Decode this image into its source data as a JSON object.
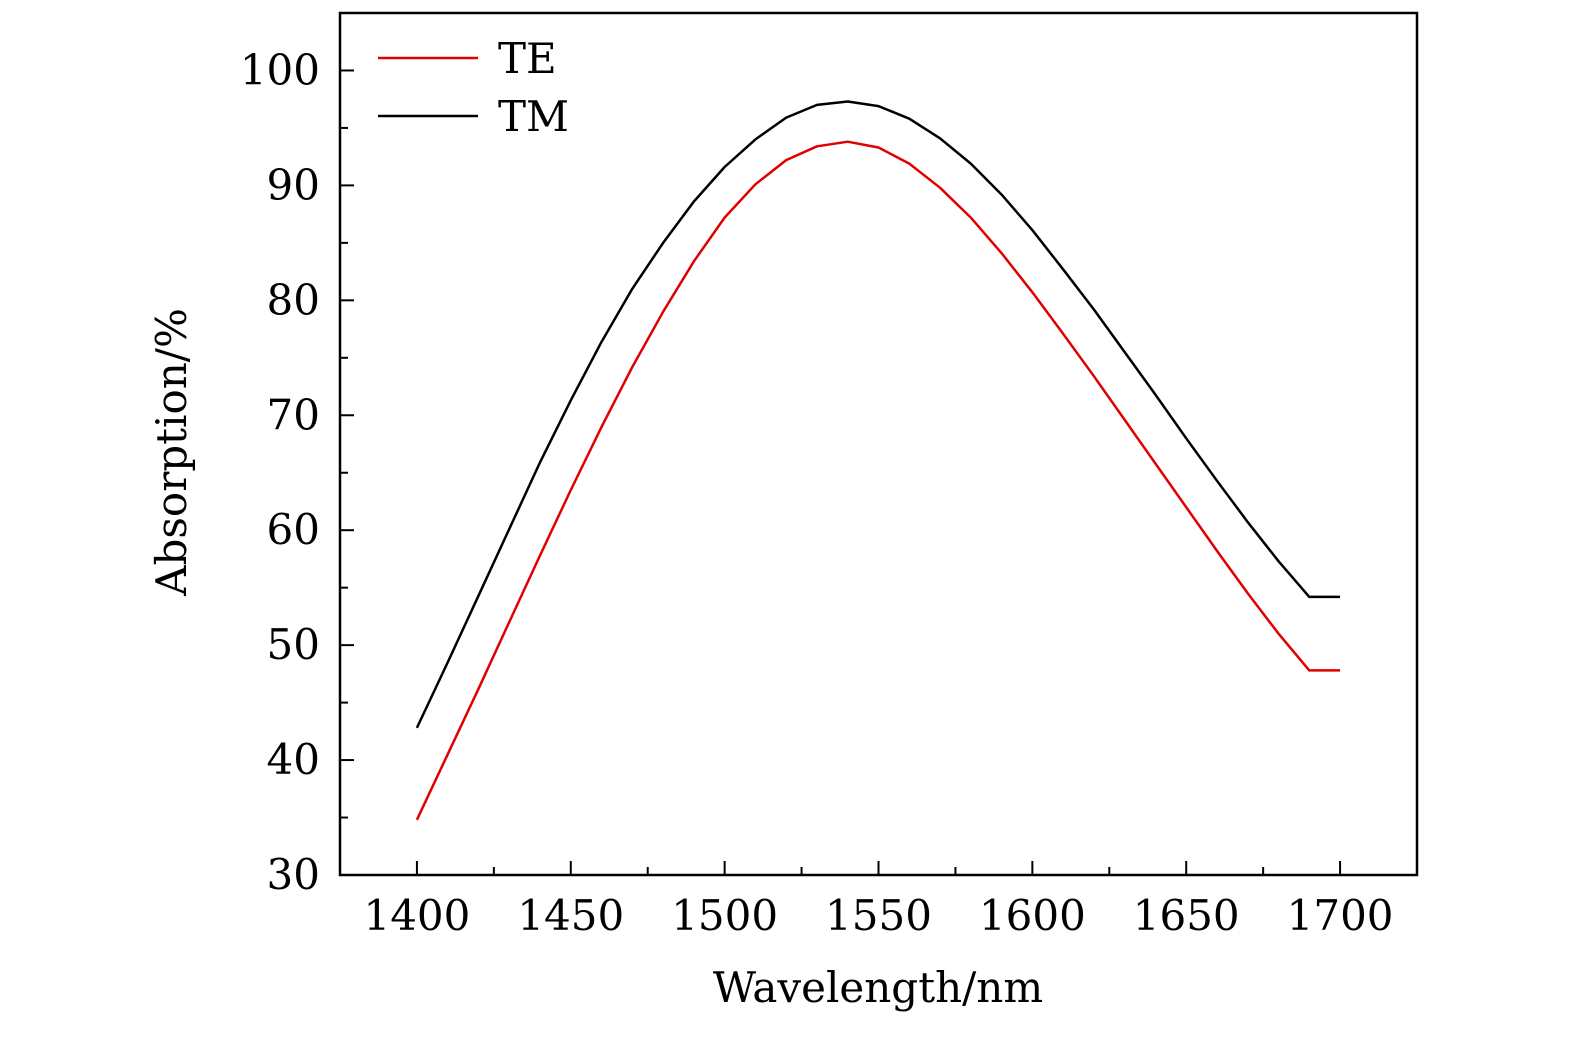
{
  "chart_data": {
    "type": "line",
    "xlabel": "Wavelength/nm",
    "ylabel": "Absorption/%",
    "xlim": [
      1375,
      1725
    ],
    "ylim": [
      30,
      105
    ],
    "xticks": [
      1400,
      1450,
      1500,
      1550,
      1600,
      1650,
      1700
    ],
    "yticks": [
      30,
      40,
      50,
      60,
      70,
      80,
      90,
      100
    ],
    "legend_position": "top-left",
    "grid": false,
    "x": [
      1400,
      1410,
      1420,
      1430,
      1440,
      1450,
      1460,
      1470,
      1480,
      1490,
      1500,
      1510,
      1520,
      1530,
      1540,
      1550,
      1560,
      1570,
      1580,
      1590,
      1600,
      1610,
      1620,
      1630,
      1640,
      1650,
      1660,
      1670,
      1680,
      1690,
      1700
    ],
    "series": [
      {
        "name": "TE",
        "color": "#e00000",
        "values": [
          34.8,
          40.5,
          46.2,
          52.0,
          57.8,
          63.5,
          69.0,
          74.2,
          79.0,
          83.4,
          87.2,
          90.1,
          92.2,
          93.4,
          93.8,
          93.3,
          91.9,
          89.8,
          87.2,
          84.1,
          80.7,
          77.1,
          73.4,
          69.6,
          65.8,
          62.0,
          58.2,
          54.5,
          51.0,
          47.8,
          47.8
        ]
      },
      {
        "name": "TM",
        "color": "#000000",
        "values": [
          42.8,
          48.5,
          54.3,
          60.1,
          65.9,
          71.3,
          76.4,
          81.0,
          85.0,
          88.6,
          91.6,
          94.0,
          95.9,
          97.0,
          97.3,
          96.9,
          95.8,
          94.1,
          91.9,
          89.2,
          86.1,
          82.7,
          79.2,
          75.5,
          71.8,
          68.0,
          64.3,
          60.7,
          57.3,
          54.2,
          54.2
        ]
      }
    ]
  }
}
